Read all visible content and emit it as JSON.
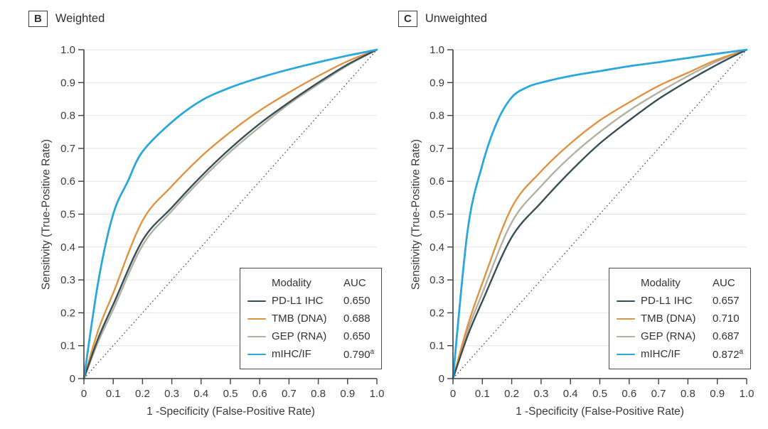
{
  "colors": {
    "background": "#FFFFFF",
    "grid": "#E4E4E4",
    "axis": "#3F3F3F",
    "text": "#3A3A3A",
    "reference_line": "#4F4F4F",
    "pd_l1_ihc": "#374E55",
    "tmb_dna": "#DF9242",
    "gep_rna": "#B3AFA2",
    "mihc_if": "#2AA8DC"
  },
  "chart_data": [
    {
      "panel_label": "B",
      "title": "Weighted",
      "type": "line",
      "subtype": "roc-curve",
      "xlabel": "1 -Specificity (False-Positive Rate)",
      "ylabel": "Sensitivity (True-Positive Rate)",
      "xlim": [
        0,
        1
      ],
      "ylim": [
        0,
        1
      ],
      "tick_values": [
        0,
        0.1,
        0.2,
        0.3,
        0.4,
        0.5,
        0.6,
        0.7,
        0.8,
        0.9,
        1
      ],
      "tick_labels": [
        "0",
        "0.1",
        "0.2",
        "0.3",
        "0.4",
        "0.5",
        "0.6",
        "0.7",
        "0.8",
        "0.9",
        "1.0"
      ],
      "grid": "horizontal",
      "reference_line": "dotted-diagonal-chance-line",
      "legend": {
        "position": "lower-right",
        "col1": "Modality",
        "col2": "AUC"
      },
      "series": [
        {
          "name": "PD-L1 IHC",
          "auc": "0.650",
          "auc_sup": "",
          "color": "#374E55",
          "x": [
            0,
            0.05,
            0.1,
            0.2,
            0.3,
            0.4,
            0.5,
            0.6,
            0.7,
            0.8,
            0.9,
            1
          ],
          "y": [
            0,
            0.125,
            0.225,
            0.42,
            0.52,
            0.615,
            0.7,
            0.775,
            0.84,
            0.9,
            0.955,
            1
          ]
        },
        {
          "name": "TMB (DNA)",
          "auc": "0.688",
          "auc_sup": "",
          "color": "#DF9242",
          "x": [
            0,
            0.05,
            0.1,
            0.2,
            0.3,
            0.4,
            0.5,
            0.6,
            0.7,
            0.8,
            0.9,
            1
          ],
          "y": [
            0,
            0.15,
            0.26,
            0.48,
            0.585,
            0.675,
            0.75,
            0.815,
            0.87,
            0.92,
            0.965,
            1
          ]
        },
        {
          "name": "GEP (RNA)",
          "auc": "0.650",
          "auc_sup": "",
          "color": "#B3AFA2",
          "x": [
            0,
            0.05,
            0.1,
            0.2,
            0.3,
            0.4,
            0.5,
            0.6,
            0.7,
            0.8,
            0.9,
            1
          ],
          "y": [
            0,
            0.115,
            0.21,
            0.405,
            0.51,
            0.605,
            0.69,
            0.765,
            0.835,
            0.895,
            0.952,
            1
          ]
        },
        {
          "name": "mIHC/IF",
          "auc": "0.790",
          "auc_sup": "a",
          "color": "#2AA8DC",
          "x": [
            0,
            0.05,
            0.1,
            0.15,
            0.2,
            0.3,
            0.4,
            0.5,
            0.6,
            0.7,
            0.8,
            0.9,
            1
          ],
          "y": [
            0,
            0.3,
            0.5,
            0.6,
            0.69,
            0.78,
            0.845,
            0.885,
            0.915,
            0.94,
            0.962,
            0.982,
            1
          ]
        }
      ]
    },
    {
      "panel_label": "C",
      "title": "Unweighted",
      "type": "line",
      "subtype": "roc-curve",
      "xlabel": "1 -Specificity (False-Positive Rate)",
      "ylabel": "Sensitivity (True-Positive Rate)",
      "xlim": [
        0,
        1
      ],
      "ylim": [
        0,
        1
      ],
      "tick_values": [
        0,
        0.1,
        0.2,
        0.3,
        0.4,
        0.5,
        0.6,
        0.7,
        0.8,
        0.9,
        1
      ],
      "tick_labels": [
        "0",
        "0.1",
        "0.2",
        "0.3",
        "0.4",
        "0.5",
        "0.6",
        "0.7",
        "0.8",
        "0.9",
        "1.0"
      ],
      "grid": "horizontal",
      "reference_line": "dotted-diagonal-chance-line",
      "legend": {
        "position": "lower-right",
        "col1": "Modality",
        "col2": "AUC"
      },
      "series": [
        {
          "name": "PD-L1 IHC",
          "auc": "0.657",
          "auc_sup": "",
          "color": "#374E55",
          "x": [
            0,
            0.05,
            0.1,
            0.2,
            0.3,
            0.4,
            0.5,
            0.6,
            0.7,
            0.8,
            0.9,
            1
          ],
          "y": [
            0,
            0.13,
            0.235,
            0.43,
            0.535,
            0.63,
            0.715,
            0.785,
            0.85,
            0.905,
            0.955,
            1
          ]
        },
        {
          "name": "TMB (DNA)",
          "auc": "0.710",
          "auc_sup": "",
          "color": "#DF9242",
          "x": [
            0,
            0.05,
            0.1,
            0.2,
            0.3,
            0.4,
            0.5,
            0.6,
            0.7,
            0.8,
            0.9,
            1
          ],
          "y": [
            0,
            0.16,
            0.29,
            0.52,
            0.63,
            0.715,
            0.785,
            0.84,
            0.89,
            0.93,
            0.97,
            1
          ]
        },
        {
          "name": "GEP (RNA)",
          "auc": "0.687",
          "auc_sup": "",
          "color": "#B3AFA2",
          "x": [
            0,
            0.05,
            0.1,
            0.2,
            0.3,
            0.4,
            0.5,
            0.6,
            0.7,
            0.8,
            0.9,
            1
          ],
          "y": [
            0,
            0.145,
            0.26,
            0.475,
            0.585,
            0.675,
            0.75,
            0.815,
            0.87,
            0.92,
            0.965,
            1
          ]
        },
        {
          "name": "mIHC/IF",
          "auc": "0.872",
          "auc_sup": "a",
          "color": "#2AA8DC",
          "x": [
            0,
            0.05,
            0.1,
            0.15,
            0.2,
            0.25,
            0.3,
            0.4,
            0.5,
            0.6,
            0.7,
            0.8,
            0.9,
            1
          ],
          "y": [
            0,
            0.45,
            0.65,
            0.78,
            0.855,
            0.885,
            0.9,
            0.92,
            0.935,
            0.95,
            0.962,
            0.975,
            0.988,
            1
          ]
        }
      ]
    }
  ]
}
